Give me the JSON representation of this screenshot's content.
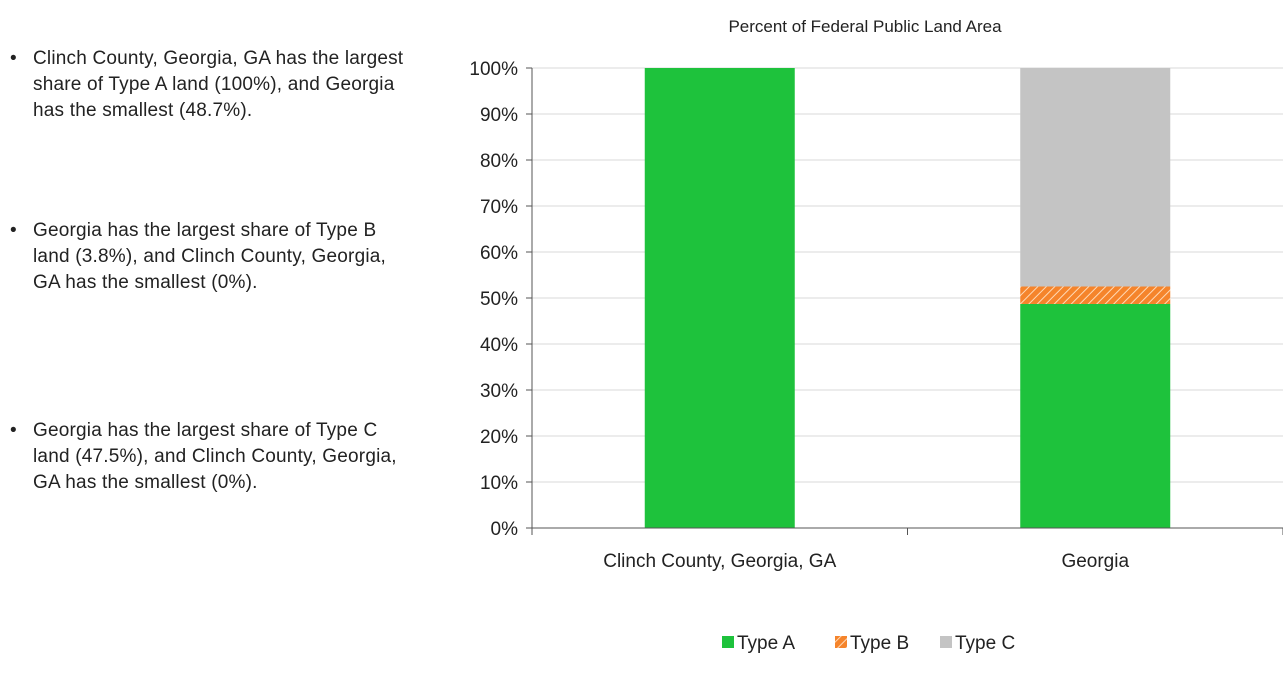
{
  "bullets": [
    "Clinch County, Georgia, GA has the largest share of Type A land (100%), and Georgia has the smallest (48.7%).",
    "Georgia has the largest share of Type B land (3.8%), and Clinch County, Georgia, GA has the smallest (0%).",
    "Georgia has the largest share of Type C land (47.5%), and Clinch County, Georgia, GA has the smallest (0%)."
  ],
  "chart_data": {
    "type": "bar",
    "stacked": true,
    "title": "Percent of Federal Public Land Area",
    "categories": [
      "Clinch County, Georgia, GA",
      "Georgia"
    ],
    "series": [
      {
        "name": "Type A",
        "values": [
          100,
          48.7
        ],
        "color": "#1ec23c",
        "pattern": "solid"
      },
      {
        "name": "Type B",
        "values": [
          0,
          3.8
        ],
        "color": "#f5842b",
        "pattern": "hatch"
      },
      {
        "name": "Type C",
        "values": [
          0,
          47.5
        ],
        "color": "#c4c4c4",
        "pattern": "solid"
      }
    ],
    "yticks": [
      "0%",
      "10%",
      "20%",
      "30%",
      "40%",
      "50%",
      "60%",
      "70%",
      "80%",
      "90%",
      "100%"
    ],
    "ylim": [
      0,
      100
    ],
    "grid": true,
    "legend_position": "bottom"
  }
}
